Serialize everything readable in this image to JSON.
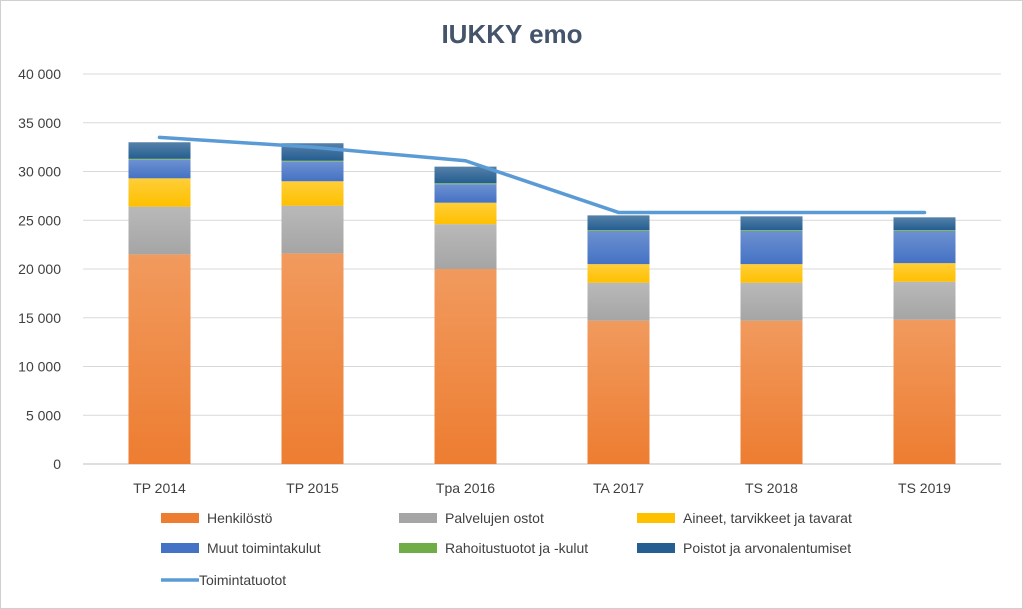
{
  "chart_data": {
    "type": "bar",
    "stacked": true,
    "title": "IUKKY emo",
    "xlabel": "",
    "ylabel": "",
    "categories": [
      "TP 2014",
      "TP 2015",
      "Tpa 2016",
      "TA 2017",
      "TS 2018",
      "TS 2019"
    ],
    "ylim": [
      0,
      40000
    ],
    "yticks": [
      0,
      5000,
      10000,
      15000,
      20000,
      25000,
      30000,
      35000,
      40000
    ],
    "ytick_labels": [
      "0",
      "5 000",
      "10 000",
      "15 000",
      "20 000",
      "25 000",
      "30 000",
      "35 000",
      "40 000"
    ],
    "grid": true,
    "legend_position": "bottom",
    "series": [
      {
        "name": "Henkilöstö",
        "kind": "bar",
        "color": "#ed7d31",
        "values": [
          21500,
          21600,
          20000,
          14700,
          14700,
          14800
        ]
      },
      {
        "name": "Palvelujen ostot",
        "kind": "bar",
        "color": "#a5a5a5",
        "values": [
          4900,
          4900,
          4600,
          3900,
          3900,
          3900
        ]
      },
      {
        "name": "Aineet, tarvikkeet ja tavarat",
        "kind": "bar",
        "color": "#ffc000",
        "values": [
          2900,
          2500,
          2200,
          1900,
          1900,
          1900
        ]
      },
      {
        "name": "Muut toimintakulut",
        "kind": "bar",
        "color": "#4472c4",
        "values": [
          1900,
          2000,
          1900,
          3400,
          3400,
          3300
        ]
      },
      {
        "name": "Rahoitustuotot ja -kulut",
        "kind": "bar",
        "color": "#70ad47",
        "values": [
          100,
          100,
          100,
          100,
          100,
          100
        ]
      },
      {
        "name": "Poistot ja arvonalentumiset",
        "kind": "bar",
        "color": "#255e91",
        "values": [
          1700,
          1800,
          1700,
          1500,
          1400,
          1300
        ]
      },
      {
        "name": "Toimintatuotot",
        "kind": "line",
        "color": "#5b9bd5",
        "values": [
          33500,
          32500,
          31100,
          25800,
          25800,
          25800
        ]
      }
    ]
  }
}
